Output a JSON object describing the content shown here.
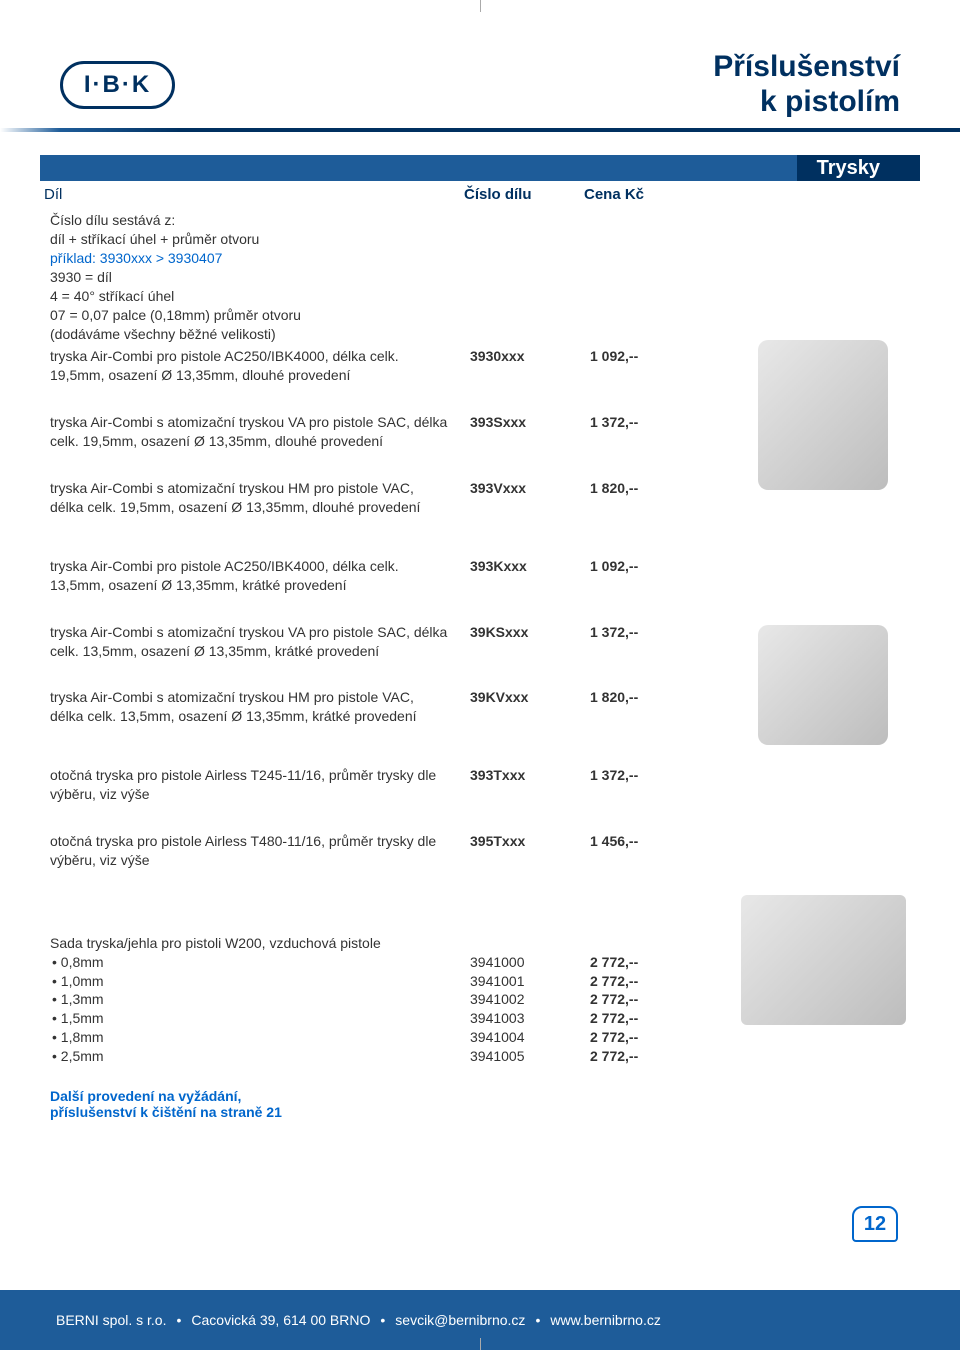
{
  "header": {
    "logo_text": "I·B·K",
    "title_line1": "Příslušenství",
    "title_line2": "k pistolím"
  },
  "section_label": "Trysky",
  "table": {
    "headings": {
      "dil": "Díl",
      "code": "Číslo dílu",
      "price": "Cena Kč"
    },
    "intro": {
      "line1": "Číslo dílu sestává z:",
      "line2": "díl + stříkací úhel + průměr otvoru",
      "example": "příklad: 3930xxx > 3930407",
      "line3": "3930 = díl",
      "line4": "4 = 40° stříkací úhel",
      "line5": "07 = 0,07 palce (0,18mm) průměr otvoru",
      "line6": "(dodáváme všechny běžné velikosti)"
    },
    "rows": [
      {
        "desc": "tryska Air-Combi pro pistole AC250/IBK4000, délka celk. 19,5mm, osazení Ø 13,35mm, dlouhé provedení",
        "code": "3930xxx",
        "price": "1 092,--"
      },
      {
        "desc": "tryska Air-Combi s atomizační tryskou VA pro pistole SAC, délka celk. 19,5mm, osazení Ø 13,35mm, dlouhé provedení",
        "code": "393Sxxx",
        "price": "1 372,--"
      },
      {
        "desc": "tryska Air-Combi s atomizační tryskou HM pro pistole VAC, délka celk. 19,5mm, osazení Ø 13,35mm, dlouhé provedení",
        "code": "393Vxxx",
        "price": "1 820,--"
      },
      {
        "desc": "tryska Air-Combi pro pistole AC250/IBK4000, délka celk. 13,5mm, osazení Ø 13,35mm, krátké provedení",
        "code": "393Kxxx",
        "price": "1 092,--"
      },
      {
        "desc": "tryska Air-Combi s atomizační tryskou VA pro pistole SAC, délka celk. 13,5mm, osazení Ø 13,35mm, krátké provedení",
        "code": "39KSxxx",
        "price": "1 372,--"
      },
      {
        "desc": "tryska Air-Combi s atomizační tryskou HM pro pistole VAC, délka celk. 13,5mm, osazení Ø 13,35mm, krátké provedení",
        "code": "39KVxxx",
        "price": "1 820,--"
      },
      {
        "desc": "otočná tryska pro pistole Airless T245-11/16, průměr trysky dle výběru, viz výše",
        "code": "393Txxx",
        "price": "1 372,--"
      },
      {
        "desc": "otočná tryska pro pistole Airless T480-11/16, průměr trysky dle výběru, viz výše",
        "code": "395Txxx",
        "price": "1 456,--"
      }
    ],
    "sada_title": "Sada tryska/jehla pro pistoli W200, vzduchová pistole",
    "sada": [
      {
        "size": "0,8mm",
        "code": "3941000",
        "price": "2 772,--"
      },
      {
        "size": "1,0mm",
        "code": "3941001",
        "price": "2 772,--"
      },
      {
        "size": "1,3mm",
        "code": "3941002",
        "price": "2 772,--"
      },
      {
        "size": "1,5mm",
        "code": "3941003",
        "price": "2 772,--"
      },
      {
        "size": "1,8mm",
        "code": "3941004",
        "price": "2 772,--"
      },
      {
        "size": "2,5mm",
        "code": "3941005",
        "price": "2 772,--"
      }
    ]
  },
  "note": {
    "line1": "Další provedení na vyžádání,",
    "line2": "příslušenství k čištění na straně 21"
  },
  "footer": {
    "company": "BERNI spol. s r.o.",
    "address": "Cacovická 39, 614 00 BRNO",
    "email": "sevcik@bernibrno.cz",
    "web": "www.bernibrno.cz",
    "sep": "•",
    "page": "12"
  },
  "colors": {
    "brand_dark": "#003060",
    "brand_mid": "#1e5c99",
    "link_blue": "#0066cc",
    "page_bg": "#ffffff"
  }
}
